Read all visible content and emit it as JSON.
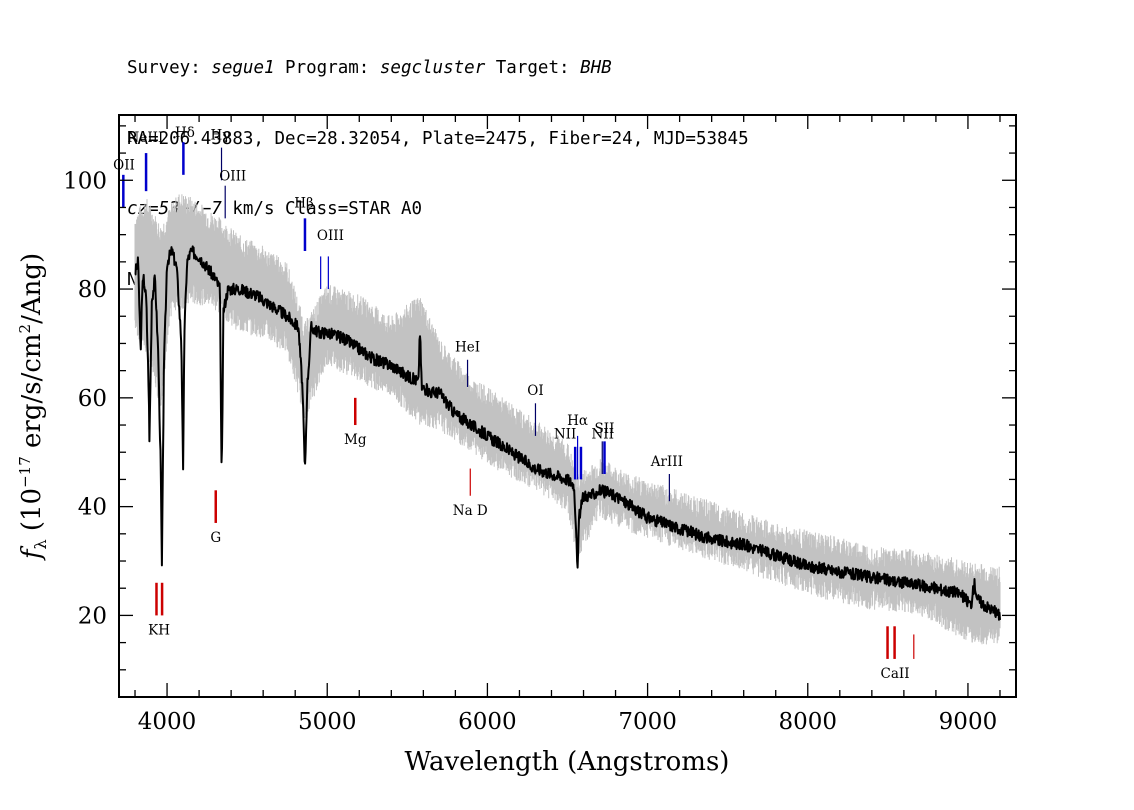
{
  "header": {
    "line1": {
      "p1": "Survey: ",
      "survey": "segue1",
      "p2": " Program: ",
      "program": "segcluster",
      "p3": " Target: ",
      "target": "BHB"
    },
    "line2": "RA=206.43883, Dec=28.32054, Plate=2475, Fiber=24, MJD=53845",
    "line3": {
      "cz": "cz=53+/−7",
      "rest": " km/s Class=STAR A0"
    },
    "line4": "No warnings."
  },
  "chart_data": {
    "type": "line",
    "title": "",
    "xlabel": "Wavelength (Angstroms)",
    "ylabel": {
      "f": "f",
      "sub": "λ",
      "a": " (10",
      "exp": "−17",
      "b": " erg/s/cm",
      "exp2": "2",
      "c": "/Ang)"
    },
    "xlim": [
      3700,
      9300
    ],
    "ylim": [
      5,
      112
    ],
    "x_ticks": [
      4000,
      5000,
      6000,
      7000,
      8000,
      9000
    ],
    "x_tick_labels": [
      "4000",
      "5000",
      "6000",
      "7000",
      "8000",
      "9000"
    ],
    "y_ticks": [
      20,
      40,
      60,
      80,
      100
    ],
    "y_tick_labels": [
      "20",
      "40",
      "60",
      "80",
      "100"
    ],
    "grid": false,
    "series": [
      {
        "style": "black flux",
        "color": "#000000",
        "x": [
          3800,
          3820,
          3835,
          3845,
          3855,
          3870,
          3885,
          3890,
          3905,
          3925,
          3945,
          3960,
          3968,
          3980,
          4000,
          4030,
          4060,
          4090,
          4100,
          4108,
          4125,
          4150,
          4200,
          4250,
          4300,
          4330,
          4341,
          4352,
          4380,
          4450,
          4550,
          4650,
          4750,
          4820,
          4845,
          4861,
          4875,
          4900,
          4950,
          5000,
          5100,
          5200,
          5300,
          5400,
          5500,
          5570,
          5578,
          5590,
          5650,
          5700,
          5800,
          5900,
          6000,
          6100,
          6200,
          6300,
          6400,
          6500,
          6540,
          6556,
          6563,
          6572,
          6600,
          6650,
          6700,
          6800,
          6900,
          7000,
          7200,
          7400,
          7600,
          7800,
          8000,
          8200,
          8400,
          8600,
          8800,
          8950,
          9020,
          9040,
          9060,
          9100,
          9150,
          9200
        ],
        "y": [
          83,
          85,
          68,
          80,
          82,
          78,
          62,
          52,
          78,
          82,
          68,
          48,
          29,
          65,
          85,
          87,
          84,
          70,
          46,
          72,
          85,
          87,
          86,
          84,
          82,
          80,
          44,
          76,
          80,
          80,
          79,
          77,
          75,
          73,
          62,
          46,
          62,
          73,
          72,
          72,
          71,
          69,
          67,
          66,
          64,
          63,
          73,
          62,
          61,
          61,
          57,
          55,
          53,
          51,
          49,
          47,
          46,
          45,
          44,
          35,
          28,
          38,
          42,
          42,
          43,
          42,
          40,
          38,
          36,
          34,
          33,
          31,
          29,
          28,
          27,
          26,
          25,
          24,
          22,
          26,
          23,
          22,
          21,
          20
        ]
      },
      {
        "style": "grey error envelope",
        "color": "#c2c2c2",
        "x": [
          3800,
          3870,
          3960,
          4030,
          4080,
          4150,
          4250,
          4340,
          4450,
          4600,
          4750,
          4861,
          5000,
          5200,
          5400,
          5580,
          5700,
          5900,
          6100,
          6300,
          6500,
          6563,
          6700,
          6900,
          7200,
          7500,
          7800,
          8100,
          8400,
          8700,
          9000,
          9200
        ],
        "y_high": [
          92,
          95,
          90,
          94,
          96,
          95,
          93,
          91,
          88,
          86,
          83,
          72,
          79,
          77,
          73,
          77,
          69,
          62,
          58,
          54,
          50,
          44,
          47,
          44,
          41,
          38,
          35,
          33,
          31,
          30,
          28,
          27
        ],
        "y_low": [
          74,
          70,
          60,
          78,
          78,
          79,
          79,
          77,
          74,
          73,
          70,
          58,
          68,
          65,
          62,
          57,
          56,
          52,
          48,
          45,
          41,
          32,
          40,
          37,
          34,
          31,
          28,
          25,
          23,
          22,
          17,
          16
        ]
      }
    ],
    "line_markers": [
      {
        "label": "OII",
        "x": 3727,
        "color": "#0000cc",
        "y1": 95,
        "y2": 101,
        "lx": 3722,
        "ly": 102,
        "thick": true,
        "label_x_clip": true
      },
      {
        "label": "NeIII",
        "x": 3869,
        "color": "#0000cc",
        "y1": 98,
        "y2": 105,
        "lx": 3865,
        "ly": 107,
        "thick": true
      },
      {
        "label": "Hδ",
        "x": 4102,
        "color": "#0000cc",
        "y1": 101,
        "y2": 107,
        "lx": 4112,
        "ly": 108,
        "thick": true
      },
      {
        "label": "Hγ",
        "x": 4340,
        "color": "#000066",
        "y1": 100,
        "y2": 106,
        "lx": 4333,
        "ly": 107.5,
        "thick": false
      },
      {
        "label": "OIII",
        "x": 4363,
        "color": "#000066",
        "y1": 93,
        "y2": 99,
        "lx": 4410,
        "ly": 100,
        "thick": false
      },
      {
        "label": "Hβ",
        "x": 4861,
        "color": "#0000cc",
        "y1": 87,
        "y2": 93,
        "lx": 4855,
        "ly": 95,
        "thick": true
      },
      {
        "label": "OIII",
        "x": 4959,
        "color": "#0000cc",
        "y1": 80,
        "y2": 86,
        "lx": 5020,
        "ly": 89,
        "thick": false
      },
      {
        "label": "",
        "x": 5007,
        "color": "#0000cc",
        "y1": 80,
        "y2": 86,
        "thick": false
      },
      {
        "label": "Mg",
        "x": 5175,
        "color": "#cc0000",
        "y1": 55,
        "y2": 60,
        "lx": 5175,
        "ly": 51.5,
        "thick": true,
        "below": true
      },
      {
        "label": "HeI",
        "x": 5876,
        "color": "#000066",
        "y1": 62,
        "y2": 67,
        "lx": 5876,
        "ly": 68.5,
        "thick": false
      },
      {
        "label": "Na D",
        "x": 5893,
        "color": "#cc0000",
        "y1": 42,
        "y2": 47,
        "lx": 5893,
        "ly": 38.5,
        "thick": false,
        "below": true
      },
      {
        "label": "OI",
        "x": 6300,
        "color": "#000066",
        "y1": 53,
        "y2": 59,
        "lx": 6300,
        "ly": 60.5,
        "thick": false
      },
      {
        "label": "NII",
        "x": 6548,
        "color": "#0000cc",
        "y1": 45,
        "y2": 51,
        "lx": 6485,
        "ly": 52.5,
        "thick": true
      },
      {
        "label": "Hα",
        "x": 6563,
        "color": "#0000cc",
        "y1": 45,
        "y2": 53,
        "lx": 6563,
        "ly": 55,
        "thick": false
      },
      {
        "label": "",
        "x": 6584,
        "color": "#0000cc",
        "y1": 45,
        "y2": 51,
        "thick": true
      },
      {
        "label": "NII",
        "x": 6717,
        "color": "#000066",
        "y1": 46,
        "y2": 52,
        "lx": 6720,
        "ly": 52.5,
        "thick": false
      },
      {
        "label": "SII",
        "x": 6731,
        "color": "#0000cc",
        "y1": 46,
        "y2": 52,
        "lx": 6731,
        "ly": 53.5,
        "thick": true
      },
      {
        "label": "ArIII",
        "x": 7136,
        "color": "#000066",
        "y1": 41,
        "y2": 46,
        "lx": 7120,
        "ly": 47.5,
        "thick": false
      },
      {
        "label": "KH",
        "x": 3934,
        "color": "#cc0000",
        "y1": 20,
        "y2": 26,
        "lx": 3950,
        "ly": 16.5,
        "thick": true,
        "below": true
      },
      {
        "label": "",
        "x": 3969,
        "color": "#cc0000",
        "y1": 20,
        "y2": 26,
        "thick": true
      },
      {
        "label": "G",
        "x": 4304,
        "color": "#cc0000",
        "y1": 37,
        "y2": 43,
        "lx": 4304,
        "ly": 33.5,
        "thick": true,
        "below": true
      },
      {
        "label": "CaII",
        "x": 8498,
        "color": "#cc0000",
        "y1": 12,
        "y2": 18,
        "lx": 8545,
        "ly": 8.5,
        "thick": true,
        "below": true
      },
      {
        "label": "",
        "x": 8542,
        "color": "#cc0000",
        "y1": 12,
        "y2": 18,
        "thick": true
      },
      {
        "label": "",
        "x": 8662,
        "color": "#cc0000",
        "y1": 12,
        "y2": 16.5,
        "thick": false
      }
    ]
  }
}
